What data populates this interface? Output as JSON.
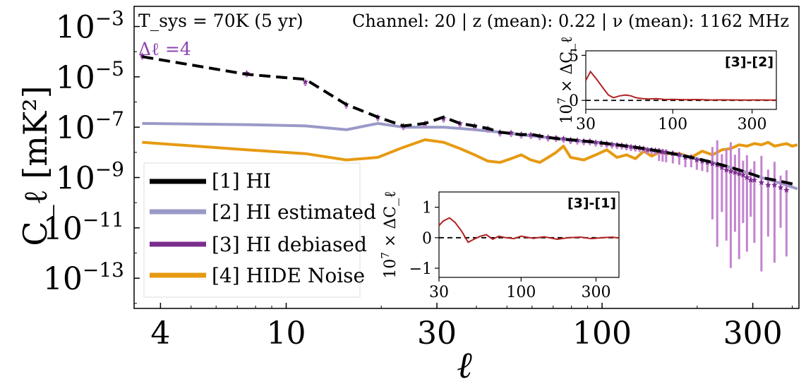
{
  "chart_data": {
    "type": "line",
    "x_scale": "log",
    "y_scale": "log",
    "xlim": [
      3.3,
      420
    ],
    "ylim_exp": [
      -14.2,
      -2.2
    ],
    "xlabel": "ℓ",
    "ylabel": "C_ℓ [mK²]",
    "xticks": [
      "4",
      "10",
      "30",
      "100",
      "300"
    ],
    "yticks": [
      "10^{-3}",
      "10^{-5}",
      "10^{-7}",
      "10^{-9}",
      "10^{-11}",
      "10^{-13}"
    ],
    "annotation_left": "T_sys = 70K (5 yr)",
    "annotation_right": "Channel: 20 | z (mean): 0.22 | ν (mean): 1162 MHz",
    "annotation_delta": "Δℓ =4",
    "legend": {
      "placement": "lower-left",
      "items": [
        "[1] HI",
        "[2] HI estimated",
        "[3] HI debiased",
        "[4] HIDE Noise"
      ]
    },
    "colors": {
      "hi": "#000000",
      "hi_est": "#9a9ac8",
      "hi_debiased": "#7b2d8e",
      "noise": "#e69a12",
      "errbar": "#c383cf",
      "inset_line": "#b22222"
    },
    "series": [
      {
        "name": "[1] HI",
        "style": "dashed",
        "x": [
          3.5,
          7.5,
          11.5,
          15.5,
          19.5,
          23.5,
          27.5,
          31.5,
          35.5,
          39.5,
          43.5,
          47.5,
          51.5,
          55.5,
          59.5,
          63.5,
          67.5,
          71.5,
          75.5,
          79.5,
          87.5,
          95.5,
          103.5,
          111.5,
          119.5,
          127.5,
          135.5,
          143.5,
          151.5,
          159.5,
          175.5,
          191.5,
          207.5,
          223.5,
          239.5,
          255.5,
          271.5,
          287.5,
          303.5,
          319.5,
          335.5,
          351.5,
          367.5,
          383.5,
          399.5,
          415.5
        ],
        "y_exp": [
          -4.2,
          -4.9,
          -5.1,
          -6.1,
          -6.6,
          -6.95,
          -6.85,
          -6.6,
          -6.85,
          -6.95,
          -7.05,
          -7.2,
          -7.25,
          -7.3,
          -7.28,
          -7.35,
          -7.4,
          -7.45,
          -7.48,
          -7.5,
          -7.55,
          -7.6,
          -7.65,
          -7.7,
          -7.75,
          -7.8,
          -7.85,
          -7.9,
          -7.95,
          -8.0,
          -8.1,
          -8.2,
          -8.3,
          -8.4,
          -8.5,
          -8.6,
          -8.7,
          -8.8,
          -8.9,
          -9.0,
          -9.05,
          -9.1,
          -9.15,
          -9.2,
          -9.25,
          -9.3
        ]
      },
      {
        "name": "[2] HI estimated",
        "style": "solid",
        "x": [
          3.5,
          7.5,
          11.5,
          15.5,
          19.5,
          23.5,
          27.5,
          31.5,
          35.5,
          39.5,
          47.5,
          55.5,
          63.5,
          71.5,
          79.5,
          95.5,
          111.5,
          127.5,
          143.5,
          159.5,
          191.5,
          223.5,
          255.5,
          287.5,
          319.5,
          351.5,
          383.5,
          415.5
        ],
        "y_exp": [
          -6.85,
          -6.9,
          -6.95,
          -7.1,
          -6.85,
          -7.0,
          -7.0,
          -7.0,
          -7.05,
          -7.1,
          -7.2,
          -7.3,
          -7.38,
          -7.45,
          -7.52,
          -7.6,
          -7.7,
          -7.8,
          -7.9,
          -8.0,
          -8.2,
          -8.4,
          -8.6,
          -8.8,
          -9.0,
          -9.15,
          -9.3,
          -9.45
        ]
      },
      {
        "name": "[3] HI debiased",
        "style": "markers",
        "x": [
          3.5,
          7.5,
          11.5,
          15.5,
          19.5,
          23.5,
          27.5,
          31.5,
          35.5,
          39.5,
          43.5,
          47.5,
          51.5,
          55.5,
          59.5,
          63.5,
          67.5,
          71.5,
          75.5,
          79.5,
          83.5,
          87.5,
          91.5,
          95.5,
          99.5,
          103.5,
          107.5,
          111.5,
          115.5,
          119.5,
          123.5,
          127.5,
          131.5,
          135.5,
          139.5,
          143.5,
          147.5,
          151.5,
          155.5,
          159.5,
          167.5,
          175.5,
          183.5,
          191.5,
          199.5,
          207.5,
          215.5,
          223.5,
          231.5,
          239.5,
          247.5,
          255.5,
          263.5,
          271.5,
          279.5,
          287.5,
          295.5,
          303.5,
          319.5,
          335.5,
          351.5,
          367.5,
          383.5
        ],
        "y_exp": [
          -4.15,
          -4.85,
          -5.2,
          -6.1,
          -6.6,
          -6.95,
          -6.85,
          -6.65,
          -6.85,
          -6.95,
          -7.05,
          -7.2,
          -7.22,
          -7.28,
          -7.3,
          -7.35,
          -7.4,
          -7.42,
          -7.45,
          -7.5,
          -7.52,
          -7.55,
          -7.55,
          -7.6,
          -7.62,
          -7.65,
          -7.68,
          -7.7,
          -7.72,
          -7.75,
          -7.78,
          -7.8,
          -7.82,
          -7.85,
          -7.9,
          -7.9,
          -7.92,
          -7.95,
          -7.98,
          -8.0,
          -8.05,
          -8.1,
          -8.2,
          -8.2,
          -8.3,
          -8.35,
          -8.4,
          -8.45,
          -8.5,
          -8.6,
          -8.7,
          -8.75,
          -8.8,
          -8.85,
          -8.9,
          -9.0,
          -9.1,
          -9.1,
          -9.2,
          -9.3,
          -9.3,
          -9.4,
          -9.5
        ]
      },
      {
        "name": "[4] HIDE Noise",
        "style": "solid",
        "x": [
          3.5,
          7.5,
          11.5,
          15.5,
          19.5,
          23.5,
          27.5,
          31.5,
          35.5,
          39.5,
          43.5,
          47.5,
          51.5,
          55.5,
          59.5,
          63.5,
          67.5,
          71.5,
          75.5,
          79.5,
          87.5,
          95.5,
          103.5,
          111.5,
          119.5,
          127.5,
          135.5,
          143.5,
          151.5,
          159.5,
          175.5,
          191.5,
          207.5,
          223.5,
          239.5,
          255.5,
          271.5,
          287.5,
          303.5,
          319.5,
          335.5,
          351.5,
          367.5,
          383.5,
          399.5,
          415.5
        ],
        "y_exp": [
          -7.6,
          -7.9,
          -8.05,
          -8.3,
          -8.2,
          -7.8,
          -7.5,
          -7.6,
          -7.85,
          -8.1,
          -8.35,
          -8.4,
          -8.25,
          -8.1,
          -8.3,
          -8.4,
          -8.2,
          -8.0,
          -7.75,
          -8.2,
          -8.3,
          -8.1,
          -7.9,
          -8.2,
          -8.1,
          -8.25,
          -7.95,
          -8.15,
          -8.0,
          -8.05,
          -8.05,
          -8.2,
          -7.95,
          -8.1,
          -7.9,
          -7.85,
          -7.7,
          -7.75,
          -7.65,
          -7.7,
          -7.6,
          -7.75,
          -7.7,
          -7.65,
          -7.75,
          -7.7
        ]
      }
    ],
    "insets": [
      {
        "tag": "[3]-[2]",
        "ylabel": "10^7 × ΔC_ℓ",
        "xlim": [
          30,
          420
        ],
        "ylim": [
          -1,
          5.5
        ],
        "yticks": [
          "0",
          "5"
        ],
        "ytick_values": [
          0,
          5
        ],
        "xticks": [
          "30",
          "100",
          "300"
        ],
        "x": [
          30,
          32,
          35,
          38,
          41,
          44,
          48,
          52,
          56,
          60,
          66,
          72,
          80,
          90,
          100,
          120,
          140,
          170,
          200,
          240,
          280,
          330,
          380,
          420
        ],
        "y": [
          2.2,
          3.2,
          2.3,
          1.4,
          0.6,
          0.3,
          0.5,
          0.6,
          0.5,
          0.3,
          0.2,
          0.15,
          0.2,
          0.1,
          0.12,
          0.08,
          0.1,
          0.05,
          0.06,
          0.05,
          0.04,
          0.05,
          0.03,
          0.04
        ]
      },
      {
        "tag": "[3]-[1]",
        "ylabel": "10^7 × ΔC_ℓ",
        "xlim": [
          30,
          420
        ],
        "ylim": [
          -1.3,
          1.5
        ],
        "yticks": [
          "−1",
          "0",
          "1"
        ],
        "ytick_values": [
          -1,
          0,
          1
        ],
        "xticks": [
          "30",
          "100",
          "300"
        ],
        "x": [
          30,
          32,
          35,
          38,
          42,
          46,
          50,
          55,
          60,
          66,
          72,
          80,
          90,
          100,
          120,
          140,
          170,
          200,
          240,
          280,
          330,
          380,
          420
        ],
        "y": [
          0.4,
          0.55,
          0.65,
          0.5,
          0.2,
          -0.15,
          -0.05,
          0.05,
          0.1,
          -0.05,
          0.05,
          0.0,
          -0.03,
          0.05,
          -0.02,
          0.03,
          -0.05,
          0.0,
          0.02,
          -0.03,
          0.0,
          0.02,
          -0.01
        ]
      }
    ]
  }
}
